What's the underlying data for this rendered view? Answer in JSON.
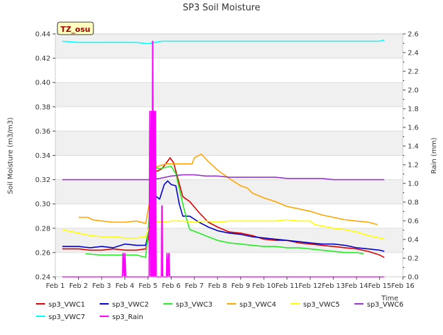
{
  "chart_data": {
    "type": "line",
    "title": "SP3 Soil Moisture",
    "site_badge": "TZ_osu",
    "xlabel": "Time",
    "ylabel": "Soil Moisture (m3/m3)",
    "y2label": "Rain (mm)",
    "xlim": [
      1,
      16
    ],
    "ylim": [
      0.24,
      0.44
    ],
    "y2lim": [
      0.0,
      2.6
    ],
    "x_ticks": [
      1,
      2,
      3,
      4,
      5,
      6,
      7,
      8,
      9,
      10,
      11,
      12,
      13,
      14,
      15,
      16
    ],
    "x_tick_labels": [
      "Feb 1",
      "Feb 2",
      "Feb 3",
      "Feb 4",
      "Feb 5",
      "Feb 6",
      "Feb 7",
      "Feb 8",
      "Feb 9",
      "Feb 10",
      "Feb 11",
      "Feb 12",
      "Feb 13",
      "Feb 14",
      "Feb 15",
      "Feb 16"
    ],
    "y_ticks": [
      0.24,
      0.26,
      0.28,
      0.3,
      0.32,
      0.34,
      0.36,
      0.38,
      0.4,
      0.42,
      0.44
    ],
    "y_tick_labels": [
      "0.24",
      "0.26",
      "0.28",
      "0.30",
      "0.32",
      "0.34",
      "0.36",
      "0.38",
      "0.40",
      "0.42",
      "0.44"
    ],
    "y2_ticks": [
      0.0,
      0.2,
      0.4,
      0.6,
      0.8,
      1.0,
      1.2,
      1.4,
      1.6,
      1.8,
      2.0,
      2.2,
      2.4,
      2.6
    ],
    "y2_tick_labels": [
      "0.0",
      "0.2",
      "0.4",
      "0.6",
      "0.8",
      "1.0",
      "1.2",
      "1.4",
      "1.6",
      "1.8",
      "2.0",
      "2.2",
      "2.4",
      "2.6"
    ],
    "grid": true,
    "legend_position": "bottom",
    "series": [
      {
        "name": "sp3_VWC1",
        "color": "#dd0000",
        "axis": "left",
        "points": [
          [
            1.3,
            0.263
          ],
          [
            2,
            0.263
          ],
          [
            2.5,
            0.262
          ],
          [
            3,
            0.262
          ],
          [
            3.5,
            0.263
          ],
          [
            4,
            0.262
          ],
          [
            4.5,
            0.262
          ],
          [
            4.9,
            0.263
          ],
          [
            5.05,
            0.275
          ],
          [
            5.15,
            0.3
          ],
          [
            5.25,
            0.328
          ],
          [
            5.4,
            0.327
          ],
          [
            5.6,
            0.329
          ],
          [
            5.8,
            0.334
          ],
          [
            5.95,
            0.338
          ],
          [
            6.1,
            0.334
          ],
          [
            6.3,
            0.32
          ],
          [
            6.5,
            0.306
          ],
          [
            6.8,
            0.302
          ],
          [
            7.2,
            0.293
          ],
          [
            7.6,
            0.285
          ],
          [
            8,
            0.281
          ],
          [
            8.5,
            0.277
          ],
          [
            9,
            0.276
          ],
          [
            9.5,
            0.274
          ],
          [
            10,
            0.271
          ],
          [
            10.5,
            0.27
          ],
          [
            11,
            0.27
          ],
          [
            11.5,
            0.268
          ],
          [
            12,
            0.267
          ],
          [
            12.5,
            0.266
          ],
          [
            13,
            0.265
          ],
          [
            13.5,
            0.264
          ],
          [
            14,
            0.263
          ],
          [
            14.5,
            0.261
          ],
          [
            15,
            0.258
          ],
          [
            15.2,
            0.256
          ]
        ]
      },
      {
        "name": "sp3_VWC2",
        "color": "#0000cc",
        "axis": "left",
        "points": [
          [
            1.3,
            0.265
          ],
          [
            2,
            0.265
          ],
          [
            2.5,
            0.264
          ],
          [
            3,
            0.265
          ],
          [
            3.5,
            0.264
          ],
          [
            4,
            0.267
          ],
          [
            4.5,
            0.266
          ],
          [
            4.9,
            0.266
          ],
          [
            5.1,
            0.285
          ],
          [
            5.2,
            0.305
          ],
          [
            5.3,
            0.307
          ],
          [
            5.5,
            0.304
          ],
          [
            5.7,
            0.316
          ],
          [
            5.85,
            0.319
          ],
          [
            6.0,
            0.316
          ],
          [
            6.2,
            0.315
          ],
          [
            6.35,
            0.3
          ],
          [
            6.5,
            0.29
          ],
          [
            6.8,
            0.29
          ],
          [
            7.2,
            0.285
          ],
          [
            7.6,
            0.281
          ],
          [
            8,
            0.278
          ],
          [
            8.5,
            0.276
          ],
          [
            9,
            0.275
          ],
          [
            9.5,
            0.273
          ],
          [
            10,
            0.272
          ],
          [
            10.5,
            0.271
          ],
          [
            11,
            0.27
          ],
          [
            11.5,
            0.269
          ],
          [
            12,
            0.268
          ],
          [
            12.5,
            0.267
          ],
          [
            13,
            0.267
          ],
          [
            13.5,
            0.266
          ],
          [
            14,
            0.264
          ],
          [
            14.5,
            0.263
          ],
          [
            15,
            0.262
          ],
          [
            15.2,
            0.261
          ]
        ]
      },
      {
        "name": "sp3_VWC3",
        "color": "#22ee22",
        "axis": "left",
        "points": [
          [
            2.3,
            0.259
          ],
          [
            3,
            0.258
          ],
          [
            3.5,
            0.258
          ],
          [
            4,
            0.258
          ],
          [
            4.5,
            0.258
          ],
          [
            4.9,
            0.256
          ],
          [
            5.1,
            0.3
          ],
          [
            5.3,
            0.33
          ],
          [
            5.5,
            0.329
          ],
          [
            5.7,
            0.33
          ],
          [
            6.0,
            0.331
          ],
          [
            6.2,
            0.325
          ],
          [
            6.5,
            0.3
          ],
          [
            6.7,
            0.285
          ],
          [
            6.8,
            0.279
          ],
          [
            7.2,
            0.276
          ],
          [
            7.6,
            0.273
          ],
          [
            8,
            0.27
          ],
          [
            8.5,
            0.268
          ],
          [
            9,
            0.267
          ],
          [
            9.5,
            0.266
          ],
          [
            10,
            0.265
          ],
          [
            10.5,
            0.265
          ],
          [
            11,
            0.264
          ],
          [
            11.5,
            0.264
          ],
          [
            12,
            0.263
          ],
          [
            12.5,
            0.262
          ],
          [
            13,
            0.261
          ],
          [
            13.5,
            0.26
          ],
          [
            14,
            0.26
          ],
          [
            14.3,
            0.259
          ]
        ]
      },
      {
        "name": "sp3_VWC4",
        "color": "#ffa500",
        "axis": "left",
        "points": [
          [
            2,
            0.289
          ],
          [
            2.4,
            0.289
          ],
          [
            2.6,
            0.287
          ],
          [
            3,
            0.286
          ],
          [
            3.5,
            0.285
          ],
          [
            4,
            0.285
          ],
          [
            4.5,
            0.286
          ],
          [
            4.9,
            0.284
          ],
          [
            5.1,
            0.305
          ],
          [
            5.3,
            0.33
          ],
          [
            5.6,
            0.332
          ],
          [
            5.8,
            0.333
          ],
          [
            6.0,
            0.333
          ],
          [
            6.5,
            0.333
          ],
          [
            6.9,
            0.333
          ],
          [
            7.0,
            0.338
          ],
          [
            7.3,
            0.341
          ],
          [
            7.6,
            0.335
          ],
          [
            8,
            0.328
          ],
          [
            8.5,
            0.321
          ],
          [
            9,
            0.315
          ],
          [
            9.3,
            0.313
          ],
          [
            9.5,
            0.309
          ],
          [
            10,
            0.305
          ],
          [
            10.5,
            0.302
          ],
          [
            11,
            0.298
          ],
          [
            11.5,
            0.296
          ],
          [
            12,
            0.294
          ],
          [
            12.5,
            0.291
          ],
          [
            13,
            0.289
          ],
          [
            13.5,
            0.287
          ],
          [
            14,
            0.286
          ],
          [
            14.5,
            0.285
          ],
          [
            14.9,
            0.283
          ]
        ]
      },
      {
        "name": "sp3_VWC5",
        "color": "#ffff00",
        "axis": "left",
        "points": [
          [
            1.3,
            0.279
          ],
          [
            1.5,
            0.278
          ],
          [
            2,
            0.276
          ],
          [
            2.5,
            0.274
          ],
          [
            3,
            0.273
          ],
          [
            3.5,
            0.273
          ],
          [
            4,
            0.272
          ],
          [
            4.5,
            0.272
          ],
          [
            4.9,
            0.273
          ],
          [
            5.1,
            0.283
          ],
          [
            5.3,
            0.286
          ],
          [
            5.6,
            0.285
          ],
          [
            6,
            0.286
          ],
          [
            6.5,
            0.286
          ],
          [
            7,
            0.285
          ],
          [
            7.5,
            0.286
          ],
          [
            8,
            0.285
          ],
          [
            8.5,
            0.286
          ],
          [
            9,
            0.286
          ],
          [
            9.5,
            0.286
          ],
          [
            10,
            0.286
          ],
          [
            10.5,
            0.286
          ],
          [
            11,
            0.287
          ],
          [
            11.5,
            0.286
          ],
          [
            12,
            0.286
          ],
          [
            12.2,
            0.283
          ],
          [
            12.5,
            0.282
          ],
          [
            13,
            0.28
          ],
          [
            13.5,
            0.279
          ],
          [
            14,
            0.277
          ],
          [
            14.5,
            0.274
          ],
          [
            15,
            0.272
          ],
          [
            15.2,
            0.271
          ]
        ]
      },
      {
        "name": "sp3_VWC6",
        "color": "#9933cc",
        "axis": "left",
        "points": [
          [
            1.3,
            0.32
          ],
          [
            2,
            0.32
          ],
          [
            2.5,
            0.32
          ],
          [
            3,
            0.32
          ],
          [
            3.5,
            0.32
          ],
          [
            4,
            0.32
          ],
          [
            4.5,
            0.32
          ],
          [
            5,
            0.32
          ],
          [
            5.5,
            0.321
          ],
          [
            6,
            0.323
          ],
          [
            6.5,
            0.324
          ],
          [
            7,
            0.324
          ],
          [
            7.5,
            0.323
          ],
          [
            8,
            0.323
          ],
          [
            8.5,
            0.322
          ],
          [
            9,
            0.322
          ],
          [
            9.5,
            0.322
          ],
          [
            10,
            0.322
          ],
          [
            10.5,
            0.322
          ],
          [
            11,
            0.321
          ],
          [
            11.5,
            0.321
          ],
          [
            12,
            0.321
          ],
          [
            12.5,
            0.321
          ],
          [
            13,
            0.32
          ],
          [
            13.5,
            0.32
          ],
          [
            14,
            0.32
          ],
          [
            14.5,
            0.32
          ],
          [
            15,
            0.32
          ],
          [
            15.2,
            0.32
          ]
        ]
      },
      {
        "name": "sp3_VWC7",
        "color": "#00ffff",
        "axis": "left",
        "points": [
          [
            1.3,
            0.434
          ],
          [
            2,
            0.433
          ],
          [
            3,
            0.433
          ],
          [
            4,
            0.433
          ],
          [
            4.5,
            0.433
          ],
          [
            5,
            0.432
          ],
          [
            5.3,
            0.433
          ],
          [
            5.6,
            0.434
          ],
          [
            6,
            0.434
          ],
          [
            7,
            0.434
          ],
          [
            8,
            0.434
          ],
          [
            9,
            0.434
          ],
          [
            10,
            0.434
          ],
          [
            11,
            0.434
          ],
          [
            12,
            0.434
          ],
          [
            13,
            0.434
          ],
          [
            14,
            0.434
          ],
          [
            15,
            0.434
          ],
          [
            15.2,
            0.435
          ]
        ]
      },
      {
        "name": "sp3_Rain",
        "color": "#ff00ff",
        "axis": "right",
        "points": [
          [
            1.3,
            0.0
          ],
          [
            3.9,
            0.0
          ],
          [
            3.92,
            0.25
          ],
          [
            3.98,
            0.0
          ],
          [
            4.0,
            0.25
          ],
          [
            4.04,
            0.0
          ],
          [
            5.05,
            0.0
          ],
          [
            5.08,
            1.77
          ],
          [
            5.12,
            0.0
          ],
          [
            5.15,
            1.77
          ],
          [
            5.18,
            0.0
          ],
          [
            5.2,
            2.52
          ],
          [
            5.23,
            0.0
          ],
          [
            5.26,
            1.77
          ],
          [
            5.29,
            0.0
          ],
          [
            5.32,
            1.77
          ],
          [
            5.35,
            0.0
          ],
          [
            5.58,
            0.0
          ],
          [
            5.6,
            0.76
          ],
          [
            5.63,
            0.0
          ],
          [
            5.8,
            0.0
          ],
          [
            5.82,
            0.25
          ],
          [
            5.85,
            0.0
          ],
          [
            5.9,
            0.25
          ],
          [
            5.93,
            0.0
          ],
          [
            15.2,
            0.0
          ]
        ]
      }
    ]
  }
}
